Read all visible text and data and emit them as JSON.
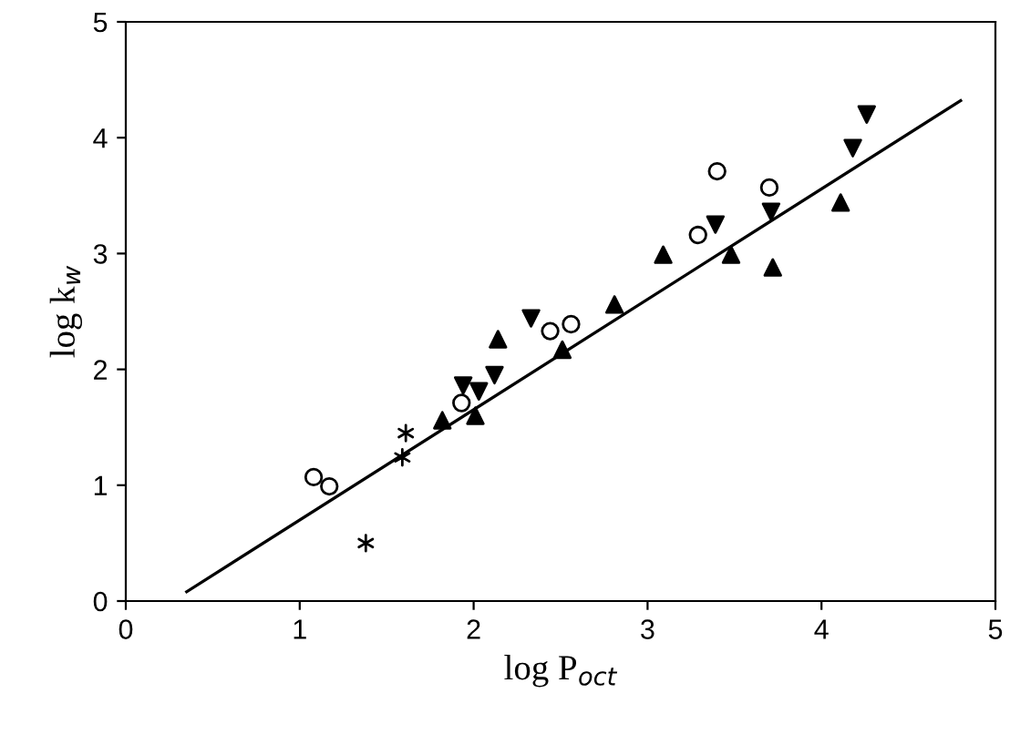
{
  "chart_data": {
    "type": "scatter",
    "xlabel": "log P$_{oct}$",
    "ylabel": "log k$_{w}$",
    "xlim": [
      0,
      5
    ],
    "ylim": [
      0,
      5
    ],
    "xticks": [
      0,
      1,
      2,
      3,
      4,
      5
    ],
    "yticks": [
      0,
      1,
      2,
      3,
      4,
      5
    ],
    "grid": false,
    "series": [
      {
        "marker": "circle",
        "color": "#000000",
        "x": [
          1.08,
          1.17,
          1.93,
          2.44,
          2.56,
          3.29,
          3.4,
          3.7
        ],
        "values": [
          1.07,
          0.99,
          1.71,
          2.33,
          2.39,
          3.16,
          3.71,
          3.57
        ]
      },
      {
        "marker": "cross",
        "color": "#000000",
        "x": [
          1.61,
          1.59,
          1.38
        ],
        "values": [
          1.45,
          1.24,
          0.5
        ]
      },
      {
        "marker": "triangle",
        "color": "#000000",
        "x": [
          1.82,
          2.01,
          2.14,
          2.51,
          2.81,
          3.09,
          3.48,
          3.72,
          4.11
        ],
        "values": [
          1.56,
          1.6,
          2.26,
          2.17,
          2.56,
          2.99,
          2.99,
          2.88,
          3.44
        ]
      },
      {
        "marker": "triangle_down",
        "color": "#000000",
        "x": [
          1.94,
          2.03,
          2.12,
          2.33,
          3.39,
          3.71,
          4.18,
          4.26
        ],
        "values": [
          1.86,
          1.81,
          1.95,
          2.44,
          3.25,
          3.36,
          3.91,
          4.2
        ]
      },
      {
        "type": "line",
        "color": "#000000",
        "line_style": "solid",
        "x": [
          0.35,
          4.8
        ],
        "values": [
          0.08,
          4.32
        ]
      }
    ]
  }
}
